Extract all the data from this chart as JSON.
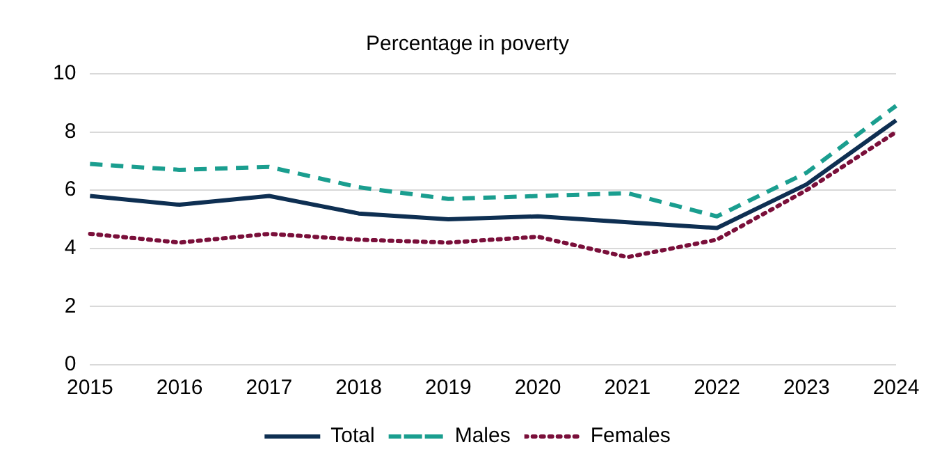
{
  "chart_data": {
    "type": "line",
    "title": "Percentage in poverty",
    "categories": [
      "2015",
      "2016",
      "2017",
      "2018",
      "2019",
      "2020",
      "2021",
      "2022",
      "2023",
      "2024"
    ],
    "series": [
      {
        "name": "Total",
        "color": "#0e2f52",
        "line_style": "solid",
        "values": [
          5.8,
          5.5,
          5.8,
          5.2,
          5.0,
          5.1,
          4.9,
          4.7,
          6.2,
          8.4
        ]
      },
      {
        "name": "Males",
        "color": "#1a9e8f",
        "line_style": "dashed",
        "values": [
          6.9,
          6.7,
          6.8,
          6.1,
          5.7,
          5.8,
          5.9,
          5.1,
          6.6,
          8.9
        ]
      },
      {
        "name": "Females",
        "color": "#7a0f3a",
        "line_style": "dotted",
        "values": [
          4.5,
          4.2,
          4.5,
          4.3,
          4.2,
          4.4,
          3.7,
          4.3,
          6.0,
          8.0
        ]
      }
    ],
    "ylim": [
      0,
      10
    ],
    "yticks": [
      0,
      2,
      4,
      6,
      8,
      10
    ],
    "grid": "y",
    "legend": "bottom",
    "marker": "none"
  }
}
